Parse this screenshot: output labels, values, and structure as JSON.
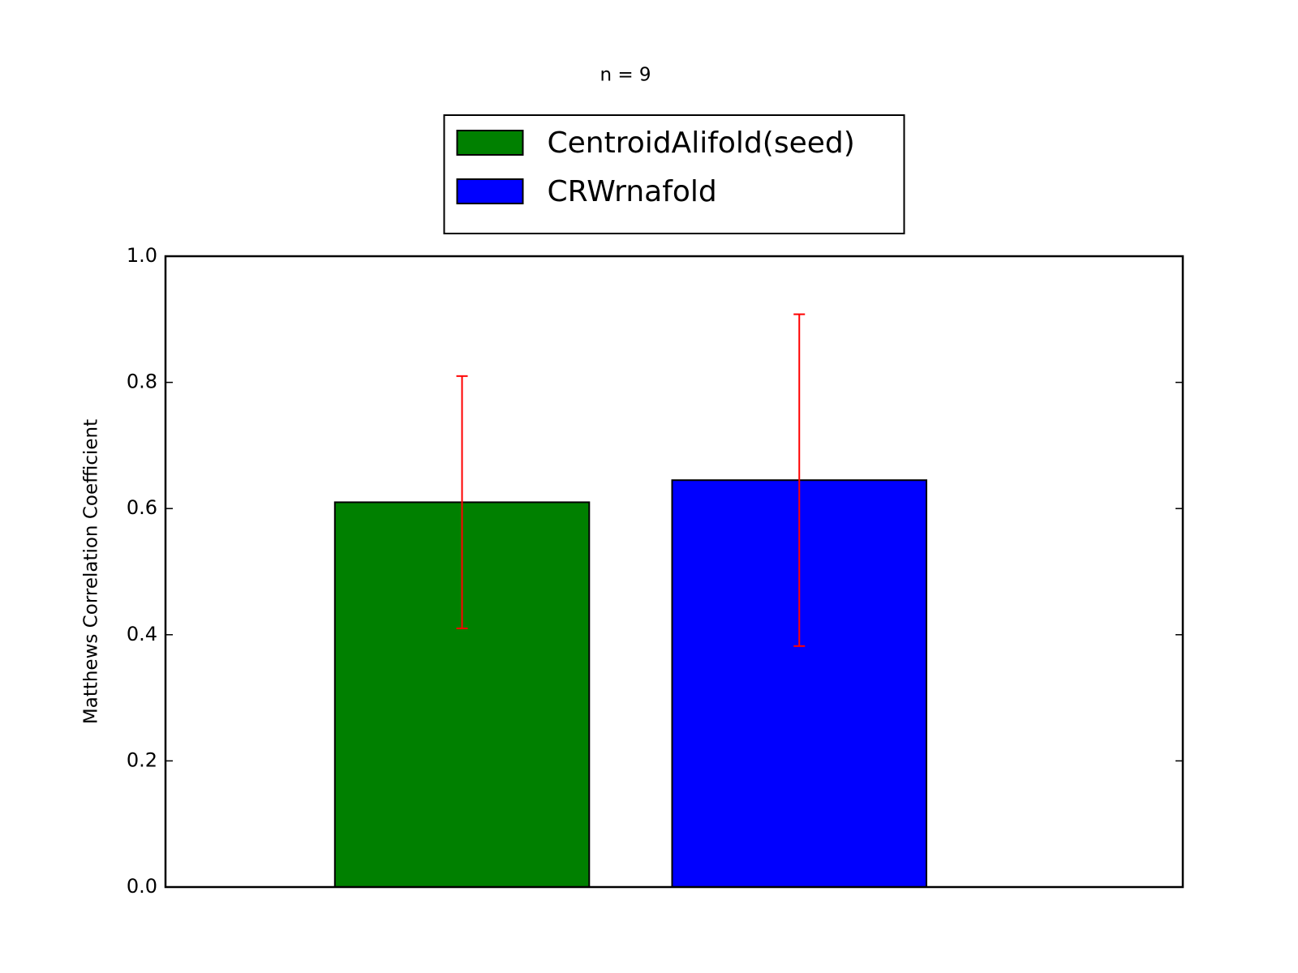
{
  "chart_data": {
    "type": "bar",
    "title": "n = 9",
    "y_label": "Matthews Correlation Coefficient",
    "series": [
      {
        "name": "CentroidAlifold(seed)",
        "color": "#008000",
        "values": [
          0.61
        ],
        "errors": [
          0.2
        ]
      },
      {
        "name": "CRWrnafold",
        "color": "#0000ff",
        "values": [
          0.645
        ],
        "errors": [
          0.263
        ]
      }
    ],
    "error_color": "#ff0000",
    "ylim": [
      0,
      1
    ],
    "yticks": [
      {
        "value": 0,
        "label": "0.0"
      },
      0.2,
      0.4,
      0.6,
      0.8,
      {
        "value": 1,
        "label": "1.0"
      }
    ],
    "grid": false,
    "legend": "upper center"
  }
}
